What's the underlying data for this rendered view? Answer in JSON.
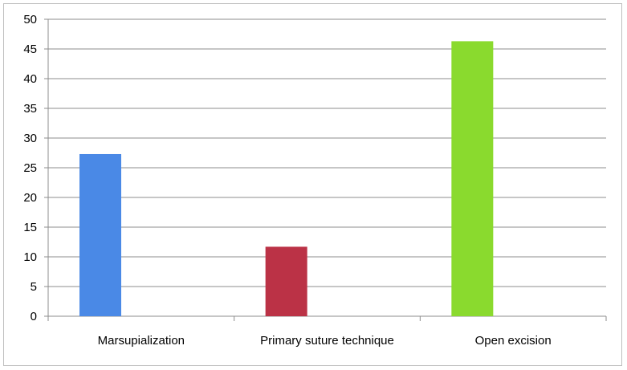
{
  "chart_data": {
    "type": "bar",
    "categories": [
      "Marsupialization",
      "Primary suture technique",
      "Open excision"
    ],
    "values": [
      27.3,
      11.7,
      46.3
    ],
    "colors": [
      "#4a89e6",
      "#bb3246",
      "#8ada2e"
    ],
    "title": "",
    "xlabel": "",
    "ylabel": "",
    "ylim": [
      0,
      50
    ],
    "yticks": [
      "0",
      "5",
      "10",
      "15",
      "20",
      "25",
      "30",
      "35",
      "40",
      "45",
      "50"
    ],
    "grid": true,
    "legend": "none",
    "gridline_color": "#8c8c8c"
  }
}
